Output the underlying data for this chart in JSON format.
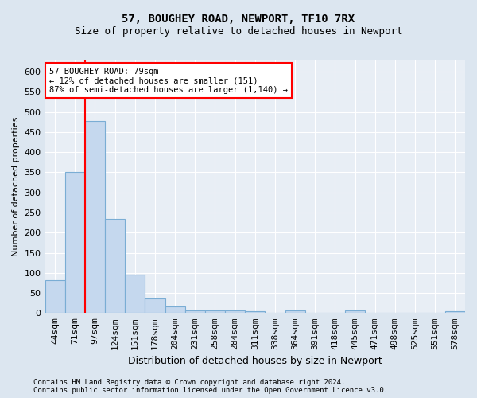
{
  "title_line1": "57, BOUGHEY ROAD, NEWPORT, TF10 7RX",
  "title_line2": "Size of property relative to detached houses in Newport",
  "xlabel": "Distribution of detached houses by size in Newport",
  "ylabel": "Number of detached properties",
  "categories": [
    "44sqm",
    "71sqm",
    "97sqm",
    "124sqm",
    "151sqm",
    "178sqm",
    "204sqm",
    "231sqm",
    "258sqm",
    "284sqm",
    "311sqm",
    "338sqm",
    "364sqm",
    "391sqm",
    "418sqm",
    "445sqm",
    "471sqm",
    "498sqm",
    "525sqm",
    "551sqm",
    "578sqm"
  ],
  "values": [
    82,
    350,
    478,
    235,
    95,
    37,
    17,
    7,
    7,
    7,
    5,
    0,
    7,
    0,
    0,
    7,
    0,
    0,
    0,
    0,
    5
  ],
  "bar_color": "#c5d8ee",
  "bar_edge_color": "#7aadd4",
  "red_line_x": 1.5,
  "annotation_text": "57 BOUGHEY ROAD: 79sqm\n← 12% of detached houses are smaller (151)\n87% of semi-detached houses are larger (1,140) →",
  "ylim": [
    0,
    630
  ],
  "yticks": [
    0,
    50,
    100,
    150,
    200,
    250,
    300,
    350,
    400,
    450,
    500,
    550,
    600
  ],
  "footer_line1": "Contains HM Land Registry data © Crown copyright and database right 2024.",
  "footer_line2": "Contains public sector information licensed under the Open Government Licence v3.0.",
  "bg_color": "#dce6f0",
  "plot_bg_color": "#e8eef5",
  "grid_color": "#ffffff",
  "title1_fontsize": 10,
  "title2_fontsize": 9,
  "ylabel_fontsize": 8,
  "xlabel_fontsize": 9,
  "tick_fontsize": 8,
  "annot_fontsize": 7.5,
  "footer_fontsize": 6.5
}
